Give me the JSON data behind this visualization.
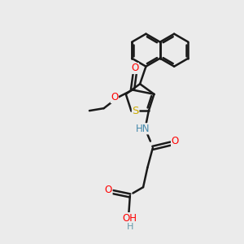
{
  "bg_color": "#ebebeb",
  "bond_color": "#1a1a1a",
  "bond_width": 1.8,
  "atom_colors": {
    "O": "#ff0000",
    "N": "#4488aa",
    "S": "#ccaa00",
    "H": "#6699aa",
    "C": "#1a1a1a"
  },
  "font_size": 8.5
}
